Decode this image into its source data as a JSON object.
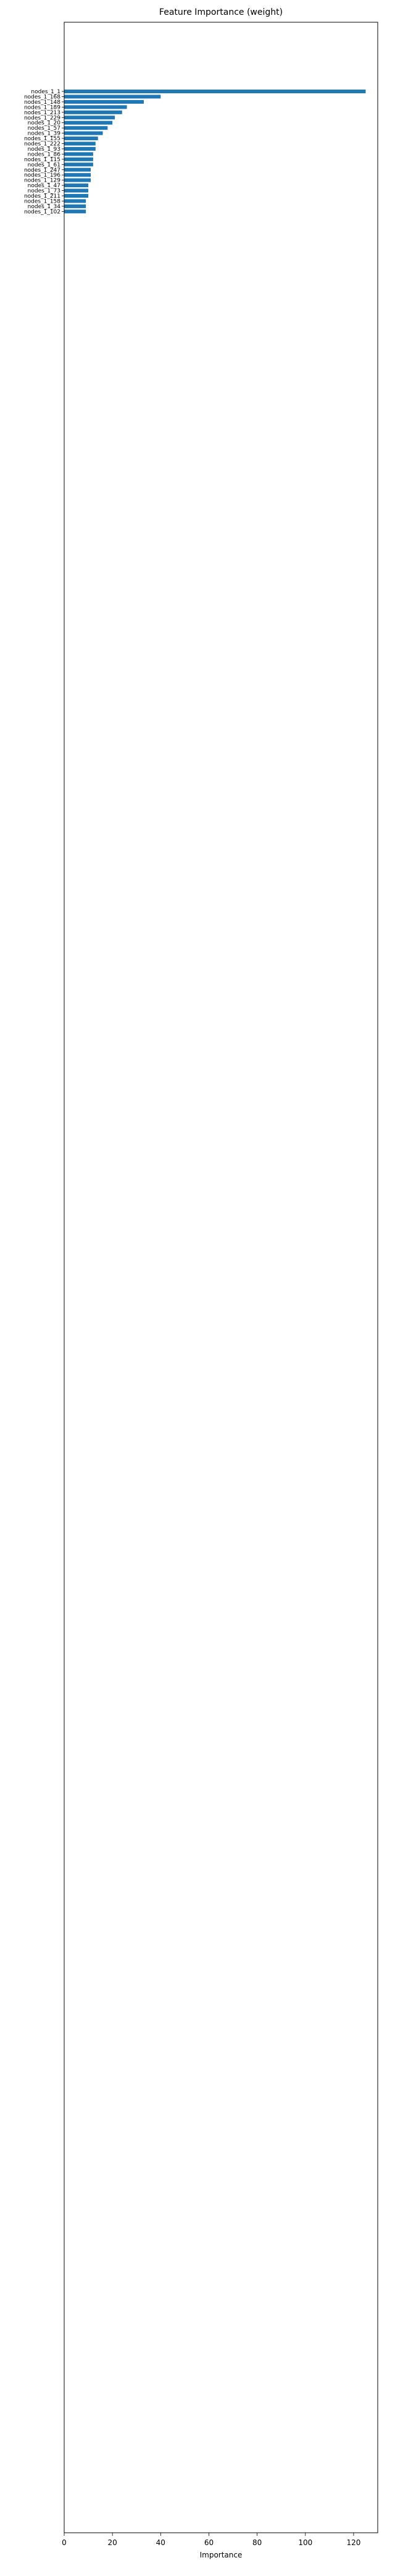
{
  "chart_data": {
    "type": "bar",
    "orientation": "horizontal",
    "title": "Feature Importance (weight)",
    "xlabel": "Importance",
    "ylabel": "",
    "xlim": [
      0,
      130
    ],
    "xticks": [
      0,
      20,
      40,
      60,
      80,
      100,
      120
    ],
    "grid": false,
    "legend": "none",
    "bar_color": "#1f77b4",
    "categories": [
      "nodes_1_1",
      "nodes_1_168",
      "nodes_1_148",
      "nodes_1_189",
      "nodes_1_213",
      "nodes_1_229",
      "nodes_1_20",
      "nodes_1_57",
      "nodes_1_39",
      "nodes_1_155",
      "nodes_1_222",
      "nodes_1_93",
      "nodes_1_86",
      "nodes_1_115",
      "nodes_1_61",
      "nodes_1_247",
      "nodes_1_196",
      "nodes_1_129",
      "nodes_1_47",
      "nodes_1_73",
      "nodes_1_211",
      "nodes_1_158",
      "nodes_1_34",
      "nodes_1_102"
    ],
    "values": [
      125,
      40,
      33,
      26,
      24,
      21,
      20,
      18,
      16,
      14,
      13,
      13,
      12,
      12,
      12,
      11,
      11,
      11,
      10,
      10,
      10,
      9,
      9,
      9
    ]
  }
}
